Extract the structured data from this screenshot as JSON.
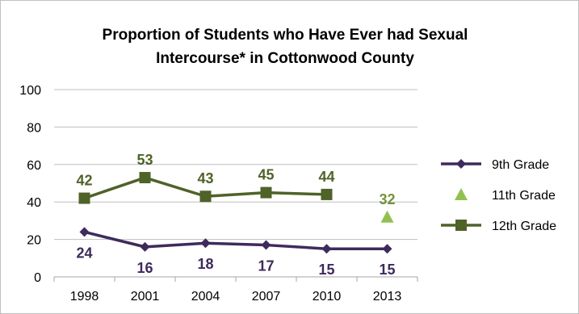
{
  "chart_data": {
    "type": "line",
    "title": [
      "Proportion of Students who Have Ever had Sexual",
      "Intercourse* in Cottonwood County"
    ],
    "xlabel": "",
    "ylabel": "",
    "categories": [
      "1998",
      "2001",
      "2004",
      "2007",
      "2010",
      "2013"
    ],
    "ylim": [
      0,
      100
    ],
    "yticks": [
      "0",
      "20",
      "40",
      "60",
      "80",
      "100"
    ],
    "grid": true,
    "legend_position": "right",
    "series": [
      {
        "name": "9th Grade",
        "values": [
          24,
          16,
          18,
          17,
          15,
          15
        ],
        "labels": [
          "24",
          "16",
          "18",
          "17",
          "15",
          "15"
        ],
        "color": "#3f2a5c",
        "marker": "diamond",
        "label_position": "below"
      },
      {
        "name": "11th Grade",
        "values": [
          null,
          null,
          null,
          null,
          null,
          32
        ],
        "labels": [
          null,
          null,
          null,
          null,
          null,
          "32"
        ],
        "color": "#92c050",
        "marker": "triangle",
        "label_position": "above"
      },
      {
        "name": "12th Grade",
        "values": [
          42,
          53,
          43,
          45,
          44,
          null
        ],
        "labels": [
          "42",
          "53",
          "43",
          "45",
          "44",
          null
        ],
        "color": "#4f6228",
        "marker": "square",
        "label_position": "above"
      }
    ],
    "label_colors": {
      "9th Grade": "#3f2a5c",
      "11th Grade": "#76923c",
      "12th Grade": "#4f6228"
    }
  }
}
